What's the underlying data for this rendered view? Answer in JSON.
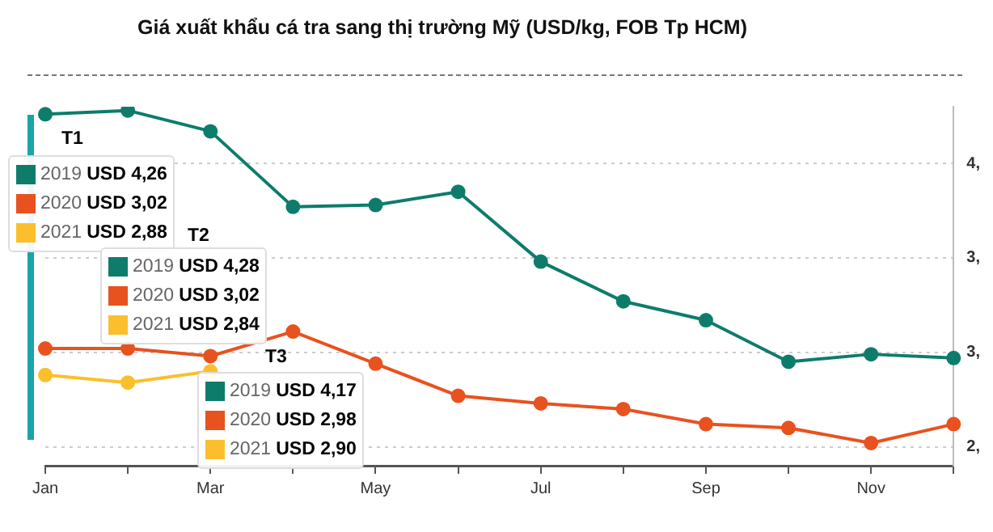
{
  "chart_data": {
    "type": "line",
    "title": "Giá xuất khẩu cá tra sang thị trường Mỹ (USD/kg, FOB Tp HCM)",
    "categories": [
      "Jan",
      null,
      "Mar",
      null,
      "May",
      null,
      "Jul",
      null,
      "Sep",
      null,
      "Nov",
      null
    ],
    "series": [
      {
        "color": "#0e7c6b",
        "values": [
          4.26,
          4.28,
          4.17,
          3.77,
          3.78,
          3.85,
          3.48,
          3.27,
          3.17,
          2.95,
          2.99,
          2.97
        ]
      },
      {
        "color": "#e8521f",
        "values": [
          3.02,
          3.02,
          2.98,
          3.11,
          2.94,
          2.77,
          2.73,
          2.7,
          2.62,
          2.6,
          2.52,
          2.62
        ]
      },
      {
        "color": "#fbbf2d",
        "values": [
          2.88,
          2.84,
          2.9,
          null,
          null,
          null,
          null,
          null,
          null,
          null,
          null,
          null
        ]
      }
    ],
    "ylim": [
      2.4,
      4.3
    ],
    "yticks": [
      {
        "value": 2.5,
        "label": "2,"
      },
      {
        "value": 3,
        "label": "3,"
      },
      {
        "value": 3.5,
        "label": "3,"
      },
      {
        "value": 4,
        "label": "4,"
      }
    ],
    "grid": "y",
    "legend": false,
    "marker": "circle",
    "line_style": "solid",
    "annotations": [
      "T1",
      "2019 USD 4,26",
      "2020 USD 3,02",
      "2021 USD 2,88",
      "T2",
      "2019 USD 4,28",
      "2020 USD 3,02",
      "2021 USD 2,84",
      "T3",
      "2019 USD 4,17",
      "2020 USD 2,98",
      "2021 USD 2,90"
    ]
  }
}
